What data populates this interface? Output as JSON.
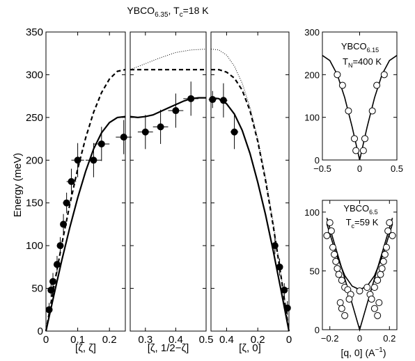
{
  "figure_title": {
    "base": "YBCO",
    "sub": "6.35",
    "rest": ", T",
    "rest_sub": "c",
    "rest_tail": "=18 K"
  },
  "ylabel": "Energy (meV)",
  "chart_data": [
    {
      "id": "main-left",
      "type": "line",
      "xlabel": "[ζ, ζ]",
      "xlim": [
        0,
        0.25
      ],
      "ylim": [
        0,
        350
      ],
      "xticks": [
        0,
        0.1,
        0.2
      ],
      "xticklabels": [
        "0",
        "0.1",
        "0.2"
      ],
      "yticks": [
        0,
        50,
        100,
        150,
        200,
        250,
        300,
        350
      ],
      "yticklabels": [
        "0",
        "50",
        "100",
        "150",
        "200",
        "250",
        "300",
        "350"
      ],
      "lines": [
        {
          "style": "dashed",
          "x": [
            0,
            0.025,
            0.05,
            0.075,
            0.1,
            0.125,
            0.15,
            0.175,
            0.2,
            0.225,
            0.25
          ],
          "y": [
            0,
            52,
            102,
            148,
            190,
            226,
            256,
            279,
            295,
            304,
            306
          ]
        },
        {
          "style": "solid",
          "x": [
            0,
            0.025,
            0.05,
            0.075,
            0.1,
            0.125,
            0.15,
            0.175,
            0.2,
            0.225,
            0.25
          ],
          "y": [
            0,
            42,
            83,
            121,
            156,
            187,
            213,
            232,
            244,
            250,
            251
          ]
        }
      ],
      "points": [
        {
          "x": 0.01,
          "y": 25,
          "xerr": 0.008,
          "yerr": 8
        },
        {
          "x": 0.016,
          "y": 48,
          "xerr": 0.008,
          "yerr": 8
        },
        {
          "x": 0.022,
          "y": 58,
          "xerr": 0.008,
          "yerr": 10
        },
        {
          "x": 0.035,
          "y": 78,
          "xerr": 0.008,
          "yerr": 10
        },
        {
          "x": 0.045,
          "y": 100,
          "xerr": 0.01,
          "yerr": 10
        },
        {
          "x": 0.055,
          "y": 125,
          "xerr": 0.01,
          "yerr": 12
        },
        {
          "x": 0.065,
          "y": 150,
          "xerr": 0.012,
          "yerr": 12
        },
        {
          "x": 0.08,
          "y": 175,
          "xerr": 0.015,
          "yerr": 15
        },
        {
          "x": 0.1,
          "y": 200,
          "xerr": 0.02,
          "yerr": 20
        },
        {
          "x": 0.15,
          "y": 200,
          "xerr": 0.025,
          "yerr": 20
        },
        {
          "x": 0.175,
          "y": 219,
          "xerr": 0.025,
          "yerr": 20
        },
        {
          "x": 0.245,
          "y": 227,
          "xerr": 0.025,
          "yerr": 20
        }
      ]
    },
    {
      "id": "main-middle",
      "type": "line",
      "xlabel": "[ζ, 1/2−ζ]",
      "xlim": [
        0.25,
        0.5
      ],
      "ylim": [
        0,
        350
      ],
      "xticks": [
        0.3,
        0.4,
        0.5
      ],
      "xticklabels": [
        "0.3",
        "0.4",
        "0.5"
      ],
      "lines": [
        {
          "style": "dashed",
          "x": [
            0.25,
            0.5
          ],
          "y": [
            306,
            306
          ]
        },
        {
          "style": "dotted",
          "x": [
            0.25,
            0.3,
            0.35,
            0.4,
            0.45,
            0.5
          ],
          "y": [
            306,
            313,
            320,
            326,
            329,
            330
          ]
        },
        {
          "style": "solid",
          "x": [
            0.25,
            0.275,
            0.3,
            0.325,
            0.35,
            0.375,
            0.4,
            0.425,
            0.45,
            0.475,
            0.5
          ],
          "y": [
            251,
            250,
            251,
            253,
            257,
            261,
            265,
            269,
            272,
            273,
            273
          ]
        }
      ],
      "points": [
        {
          "x": 0.3,
          "y": 233,
          "xerr": 0.025,
          "yerr": 20
        },
        {
          "x": 0.35,
          "y": 239,
          "xerr": 0.025,
          "yerr": 20
        },
        {
          "x": 0.4,
          "y": 258,
          "xerr": 0.025,
          "yerr": 20
        },
        {
          "x": 0.45,
          "y": 272,
          "xerr": 0.025,
          "yerr": 20
        }
      ]
    },
    {
      "id": "main-right",
      "type": "line",
      "xlabel": "[ζ, 0]",
      "xlim": [
        0.5,
        0
      ],
      "ylim": [
        0,
        350
      ],
      "xticks": [
        0.4,
        0.2,
        0
      ],
      "xticklabels": [
        "0.4",
        "0.2",
        "0"
      ],
      "lines": [
        {
          "style": "dotted",
          "x": [
            0.5,
            0.45,
            0.4,
            0.35,
            0.3,
            0.25,
            0.2,
            0.15,
            0.1,
            0.05,
            0
          ],
          "y": [
            330,
            329,
            323,
            310,
            290,
            262,
            225,
            180,
            126,
            65,
            0
          ]
        },
        {
          "style": "dashed",
          "x": [
            0.5,
            0.45,
            0.4,
            0.35,
            0.3,
            0.25,
            0.2,
            0.15,
            0.1,
            0.05,
            0
          ],
          "y": [
            306,
            306,
            303,
            296,
            282,
            258,
            222,
            176,
            122,
            63,
            0
          ]
        },
        {
          "style": "solid",
          "x": [
            0.5,
            0.45,
            0.4,
            0.35,
            0.3,
            0.25,
            0.2,
            0.15,
            0.1,
            0.05,
            0
          ],
          "y": [
            273,
            272,
            266,
            254,
            235,
            208,
            174,
            136,
            93,
            47,
            0
          ]
        }
      ],
      "points": [
        {
          "x": 0.49,
          "y": 271,
          "xerr": 0.025,
          "yerr": 10
        },
        {
          "x": 0.42,
          "y": 270,
          "xerr": 0.025,
          "yerr": 20
        },
        {
          "x": 0.35,
          "y": 233,
          "xerr": 0.025,
          "yerr": 20
        },
        {
          "x": 0.09,
          "y": 100,
          "xerr": 0.01,
          "yerr": 10
        },
        {
          "x": 0.06,
          "y": 75,
          "xerr": 0.01,
          "yerr": 10
        },
        {
          "x": 0.03,
          "y": 48,
          "xerr": 0.008,
          "yerr": 8
        },
        {
          "x": 0.01,
          "y": 27,
          "xerr": 0.008,
          "yerr": 8
        }
      ]
    },
    {
      "id": "inset-top",
      "type": "scatter",
      "title_base": "YBCO",
      "title_sub": "6.15",
      "title_line2_base": "T",
      "title_line2_sub": "N",
      "title_line2_tail": "=400 K",
      "xlim": [
        -0.5,
        0.5
      ],
      "ylim": [
        0,
        300
      ],
      "xticks": [
        -0.5,
        0,
        0.5
      ],
      "xticklabels": [
        "−0.5",
        "0",
        "0.5"
      ],
      "yticks": [
        0,
        100,
        200,
        300
      ],
      "yticklabels": [
        "0",
        "100",
        "200",
        "300"
      ],
      "lines": [
        {
          "style": "solid",
          "x": [
            -0.5,
            -0.4,
            -0.3,
            -0.2,
            -0.1,
            0,
            0.1,
            0.2,
            0.3,
            0.4,
            0.5
          ],
          "y": [
            245,
            233,
            200,
            146,
            77,
            0,
            77,
            146,
            200,
            233,
            245
          ]
        }
      ],
      "points": [
        {
          "x": -0.3,
          "y": 200
        },
        {
          "x": -0.23,
          "y": 175
        },
        {
          "x": -0.15,
          "y": 115
        },
        {
          "x": -0.07,
          "y": 50
        },
        {
          "x": -0.05,
          "y": 22
        },
        {
          "x": 0.05,
          "y": 22
        },
        {
          "x": 0.07,
          "y": 50
        },
        {
          "x": 0.17,
          "y": 115
        },
        {
          "x": 0.23,
          "y": 175
        },
        {
          "x": 0.33,
          "y": 200
        }
      ]
    },
    {
      "id": "inset-bottom",
      "type": "scatter",
      "title_base": "YBCO",
      "title_sub": "6.5",
      "title_line2_base": "T",
      "title_line2_sub": "c",
      "title_line2_tail": "=59 K",
      "xlabel_main": "[q, 0] (A",
      "xlabel_sup": "−1",
      "xlabel_tail": ")",
      "xlim": [
        -0.25,
        0.25
      ],
      "ylim": [
        0,
        110
      ],
      "xticks": [
        -0.2,
        0,
        0.2
      ],
      "xticklabels": [
        "−0.2",
        "0",
        "0.2"
      ],
      "yticks": [
        0,
        50,
        100
      ],
      "yticklabels": [
        "0",
        "50",
        "100"
      ],
      "lines": [
        {
          "style": "solid",
          "x": [
            -0.22,
            -0.15,
            -0.08,
            0,
            0.08,
            0.15,
            0.22
          ],
          "y": [
            95,
            65,
            35,
            0,
            35,
            65,
            95
          ]
        },
        {
          "style": "solid",
          "x": [
            -0.22,
            -0.16,
            -0.1,
            -0.05,
            0,
            0.05,
            0.1,
            0.16,
            0.22
          ],
          "y": [
            90,
            65,
            46,
            37,
            34,
            37,
            46,
            65,
            90
          ]
        }
      ],
      "points": [
        {
          "x": -0.22,
          "y": 80
        },
        {
          "x": -0.2,
          "y": 91
        },
        {
          "x": -0.19,
          "y": 84
        },
        {
          "x": -0.18,
          "y": 70
        },
        {
          "x": -0.17,
          "y": 64
        },
        {
          "x": -0.16,
          "y": 58
        },
        {
          "x": -0.15,
          "y": 52
        },
        {
          "x": -0.14,
          "y": 47
        },
        {
          "x": -0.12,
          "y": 42
        },
        {
          "x": -0.1,
          "y": 36
        },
        {
          "x": -0.08,
          "y": 34
        },
        {
          "x": -0.06,
          "y": 30
        },
        {
          "x": -0.13,
          "y": 23
        },
        {
          "x": -0.12,
          "y": 18
        },
        {
          "x": -0.1,
          "y": 12
        },
        {
          "x": -0.07,
          "y": 26
        },
        {
          "x": 0,
          "y": 33
        },
        {
          "x": 0.05,
          "y": 36
        },
        {
          "x": 0.07,
          "y": 30
        },
        {
          "x": 0.1,
          "y": 36
        },
        {
          "x": 0.12,
          "y": 42
        },
        {
          "x": 0.14,
          "y": 47
        },
        {
          "x": 0.15,
          "y": 52
        },
        {
          "x": 0.16,
          "y": 58
        },
        {
          "x": 0.17,
          "y": 64
        },
        {
          "x": 0.18,
          "y": 70
        },
        {
          "x": 0.19,
          "y": 84
        },
        {
          "x": 0.2,
          "y": 91
        },
        {
          "x": 0.22,
          "y": 80
        },
        {
          "x": 0.08,
          "y": 26
        },
        {
          "x": 0.1,
          "y": 18
        },
        {
          "x": 0.12,
          "y": 12
        },
        {
          "x": 0.13,
          "y": 23
        }
      ]
    }
  ]
}
